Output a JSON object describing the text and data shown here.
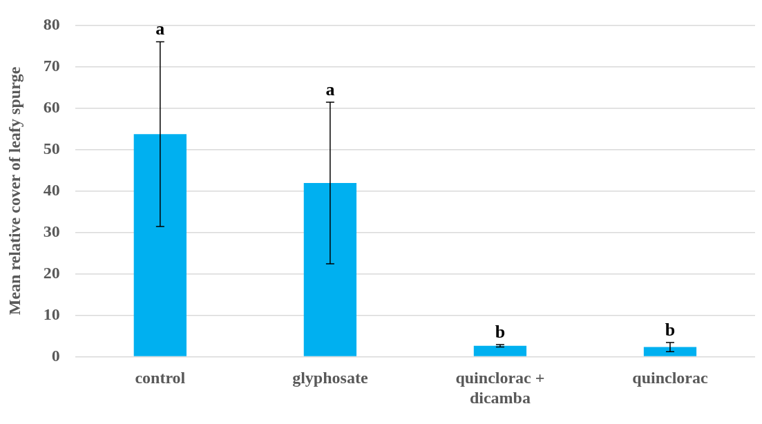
{
  "chart_data": {
    "type": "bar",
    "ylabel": "Mean relative cover of leafy spurge",
    "categories": [
      "control",
      "glyphosate",
      "quinclorac + dicamba",
      "quinclorac"
    ],
    "values": [
      53.7,
      41.9,
      2.6,
      2.3
    ],
    "errors": [
      22.3,
      19.5,
      0.3,
      1.1
    ],
    "color": "#00b0f0",
    "ylim": [
      0,
      80
    ],
    "yticks": [
      0,
      10,
      20,
      30,
      40,
      50,
      60,
      70,
      80
    ],
    "grid": "y",
    "legend": false,
    "annotations": [
      {
        "text": "a",
        "x": "control",
        "y": 76
      },
      {
        "text": "a",
        "x": "glyphosate",
        "y": 61.4
      },
      {
        "text": "b",
        "x": "quinclorac + dicamba",
        "y": 2.9
      },
      {
        "text": "b",
        "x": "quinclorac",
        "y": 3.4
      }
    ]
  }
}
